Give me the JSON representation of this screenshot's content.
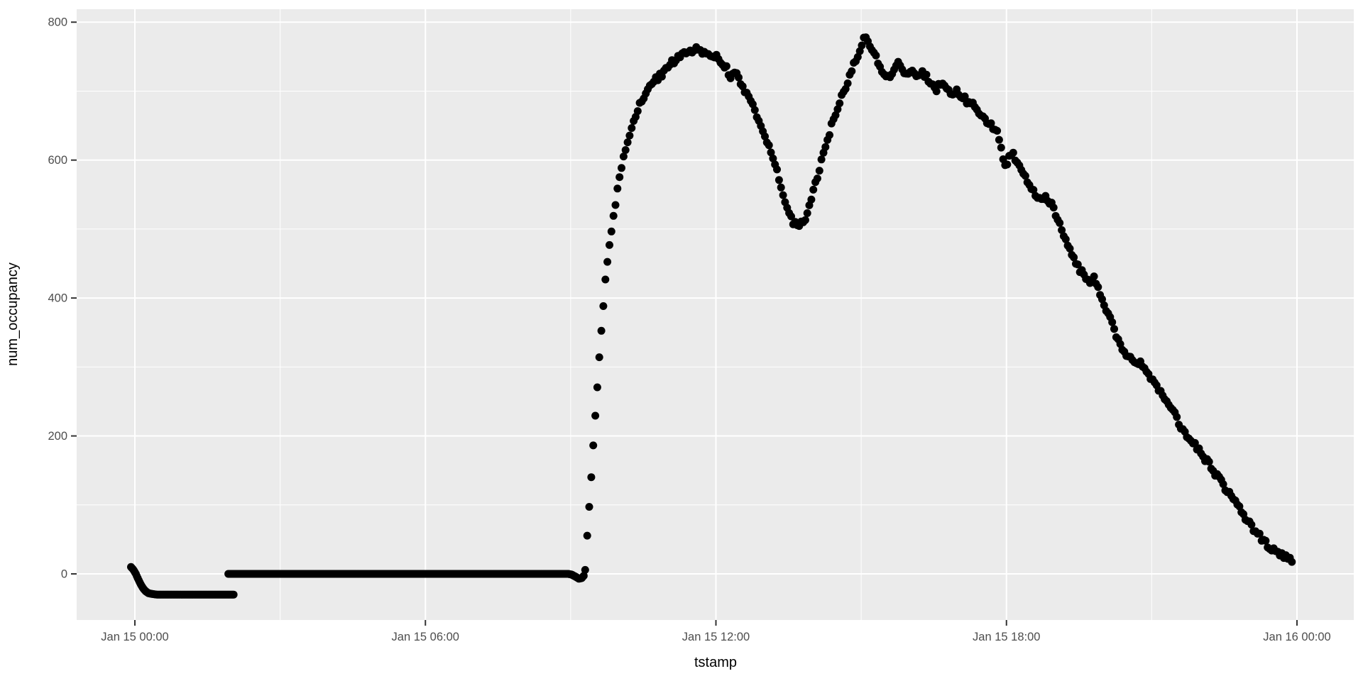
{
  "chart_data": {
    "type": "scatter",
    "title": "",
    "xlabel": "tstamp",
    "ylabel": "num_occupancy",
    "legend": "none",
    "grid": "on",
    "x_axis": {
      "unit": "hours since Jan 15 00:00",
      "visible_range_h": [
        -1.2,
        25.2
      ],
      "major_ticks": [
        {
          "t": 0,
          "label": "Jan 15 00:00"
        },
        {
          "t": 6,
          "label": "Jan 15 06:00"
        },
        {
          "t": 12,
          "label": "Jan 15 12:00"
        },
        {
          "t": 18,
          "label": "Jan 15 18:00"
        },
        {
          "t": 24,
          "label": "Jan 16 00:00"
        }
      ],
      "minor_ticks_h": [
        3,
        9,
        15,
        21
      ]
    },
    "y_axis": {
      "visible_range": [
        -70,
        820
      ],
      "data_range": [
        -30,
        780
      ],
      "major_ticks": [
        {
          "v": 0,
          "label": "0"
        },
        {
          "v": 200,
          "label": "200"
        },
        {
          "v": 400,
          "label": "400"
        },
        {
          "v": 600,
          "label": "600"
        },
        {
          "v": 800,
          "label": "800"
        }
      ],
      "minor_ticks_v": [
        100,
        300,
        500,
        700
      ]
    },
    "colors": {
      "panel_background": "#EBEBEB",
      "gridline": "#FFFFFF",
      "point": "#000000",
      "tick_label": "#4D4D4D",
      "axis_title": "#000000",
      "tick_mark": "#333333",
      "page_background": "#FFFFFF"
    },
    "series": [
      {
        "name": "num_occupancy",
        "marker": "dot",
        "segments": [
          {
            "name": "early-night-negative-dip",
            "step_h": 0.02,
            "jitter": 0,
            "keypoints": [
              [
                -0.08,
                10
              ],
              [
                -0.03,
                6
              ],
              [
                0.02,
                0
              ],
              [
                0.07,
                -8
              ],
              [
                0.12,
                -15
              ],
              [
                0.17,
                -21
              ],
              [
                0.22,
                -25
              ],
              [
                0.28,
                -28
              ],
              [
                0.35,
                -29
              ],
              [
                0.45,
                -30
              ],
              [
                2.05,
                -30
              ]
            ]
          },
          {
            "name": "night-zero-flat",
            "step_h": 0.02,
            "jitter": 0,
            "keypoints": [
              [
                1.93,
                0
              ],
              [
                8.95,
                0
              ],
              [
                9.02,
                -1
              ],
              [
                9.1,
                -4
              ],
              [
                9.17,
                -7
              ],
              [
                9.23,
                -6
              ],
              [
                9.28,
                -2
              ]
            ]
          },
          {
            "name": "daytime-profile",
            "step_h": 0.0417,
            "jitter": 4,
            "keypoints": [
              [
                9.3,
                8
              ],
              [
                9.33,
                40
              ],
              [
                9.36,
                72
              ],
              [
                9.39,
                104
              ],
              [
                9.42,
                136
              ],
              [
                9.45,
                168
              ],
              [
                9.48,
                200
              ],
              [
                9.51,
                232
              ],
              [
                9.54,
                262
              ],
              [
                9.57,
                292
              ],
              [
                9.6,
                322
              ],
              [
                9.63,
                350
              ],
              [
                9.66,
                378
              ],
              [
                9.69,
                404
              ],
              [
                9.72,
                430
              ],
              [
                9.76,
                455
              ],
              [
                9.8,
                478
              ],
              [
                9.85,
                502
              ],
              [
                9.9,
                525
              ],
              [
                9.95,
                548
              ],
              [
                10.0,
                568
              ],
              [
                10.05,
                588
              ],
              [
                10.1,
                605
              ],
              [
                10.2,
                632
              ],
              [
                10.3,
                655
              ],
              [
                10.4,
                675
              ],
              [
                10.5,
                692
              ],
              [
                10.6,
                705
              ],
              [
                10.75,
                716
              ],
              [
                10.9,
                726
              ],
              [
                11.0,
                734
              ],
              [
                11.1,
                742
              ],
              [
                11.2,
                748
              ],
              [
                11.3,
                753
              ],
              [
                11.45,
                758
              ],
              [
                11.6,
                760
              ],
              [
                11.75,
                757
              ],
              [
                11.9,
                753
              ],
              [
                12.0,
                750
              ],
              [
                12.1,
                744
              ],
              [
                12.2,
                735
              ],
              [
                12.3,
                722
              ],
              [
                12.4,
                726
              ],
              [
                12.5,
                714
              ],
              [
                12.6,
                701
              ],
              [
                12.7,
                689
              ],
              [
                12.8,
                673
              ],
              [
                12.9,
                656
              ],
              [
                13.0,
                638
              ],
              [
                13.1,
                618
              ],
              [
                13.2,
                597
              ],
              [
                13.3,
                574
              ],
              [
                13.4,
                549
              ],
              [
                13.5,
                524
              ],
              [
                13.6,
                510
              ],
              [
                13.7,
                503
              ],
              [
                13.8,
                510
              ],
              [
                13.9,
                525
              ],
              [
                14.0,
                550
              ],
              [
                14.1,
                578
              ],
              [
                14.2,
                605
              ],
              [
                14.3,
                630
              ],
              [
                14.4,
                652
              ],
              [
                14.5,
                672
              ],
              [
                14.6,
                692
              ],
              [
                14.7,
                711
              ],
              [
                14.8,
                729
              ],
              [
                14.9,
                748
              ],
              [
                15.0,
                766
              ],
              [
                15.08,
                779
              ],
              [
                15.15,
                772
              ],
              [
                15.25,
                757
              ],
              [
                15.35,
                741
              ],
              [
                15.45,
                729
              ],
              [
                15.55,
                719
              ],
              [
                15.65,
                726
              ],
              [
                15.75,
                740
              ],
              [
                15.85,
                733
              ],
              [
                15.95,
                722
              ],
              [
                16.05,
                727
              ],
              [
                16.15,
                719
              ],
              [
                16.25,
                727
              ],
              [
                16.35,
                721
              ],
              [
                16.45,
                710
              ],
              [
                16.55,
                703
              ],
              [
                16.65,
                712
              ],
              [
                16.75,
                703
              ],
              [
                16.85,
                697
              ],
              [
                16.95,
                700
              ],
              [
                17.05,
                695
              ],
              [
                17.15,
                688
              ],
              [
                17.25,
                678
              ],
              [
                17.32,
                684
              ],
              [
                17.42,
                672
              ],
              [
                17.52,
                663
              ],
              [
                17.62,
                655
              ],
              [
                17.72,
                648
              ],
              [
                17.82,
                638
              ],
              [
                17.9,
                615
              ],
              [
                17.97,
                590
              ],
              [
                18.05,
                602
              ],
              [
                18.12,
                610
              ],
              [
                18.22,
                598
              ],
              [
                18.32,
                586
              ],
              [
                18.42,
                572
              ],
              [
                18.52,
                558
              ],
              [
                18.62,
                547
              ],
              [
                18.72,
                544
              ],
              [
                18.82,
                548
              ],
              [
                18.92,
                537
              ],
              [
                19.02,
                522
              ],
              [
                19.12,
                505
              ],
              [
                19.22,
                487
              ],
              [
                19.32,
                470
              ],
              [
                19.42,
                455
              ],
              [
                19.52,
                441
              ],
              [
                19.62,
                431
              ],
              [
                19.72,
                425
              ],
              [
                19.82,
                430
              ],
              [
                19.92,
                410
              ],
              [
                20.02,
                392
              ],
              [
                20.12,
                374
              ],
              [
                20.22,
                355
              ],
              [
                20.32,
                337
              ],
              [
                20.42,
                324
              ],
              [
                20.52,
                314
              ],
              [
                20.64,
                309
              ],
              [
                20.76,
                307
              ],
              [
                20.88,
                296
              ],
              [
                21.0,
                284
              ],
              [
                21.1,
                272
              ],
              [
                21.2,
                263
              ],
              [
                21.3,
                252
              ],
              [
                21.4,
                241
              ],
              [
                21.5,
                228
              ],
              [
                21.6,
                214
              ],
              [
                21.7,
                204
              ],
              [
                21.8,
                195
              ],
              [
                21.9,
                187
              ],
              [
                22.0,
                177
              ],
              [
                22.1,
                167
              ],
              [
                22.2,
                158
              ],
              [
                22.3,
                147
              ],
              [
                22.4,
                137
              ],
              [
                22.5,
                127
              ],
              [
                22.6,
                116
              ],
              [
                22.7,
                106
              ],
              [
                22.8,
                96
              ],
              [
                22.9,
                86
              ],
              [
                23.0,
                76
              ],
              [
                23.1,
                66
              ],
              [
                23.2,
                57
              ],
              [
                23.3,
                48
              ],
              [
                23.4,
                42
              ],
              [
                23.5,
                36
              ],
              [
                23.6,
                31
              ],
              [
                23.7,
                27
              ],
              [
                23.8,
                23
              ],
              [
                23.9,
                20
              ]
            ]
          }
        ]
      }
    ]
  }
}
